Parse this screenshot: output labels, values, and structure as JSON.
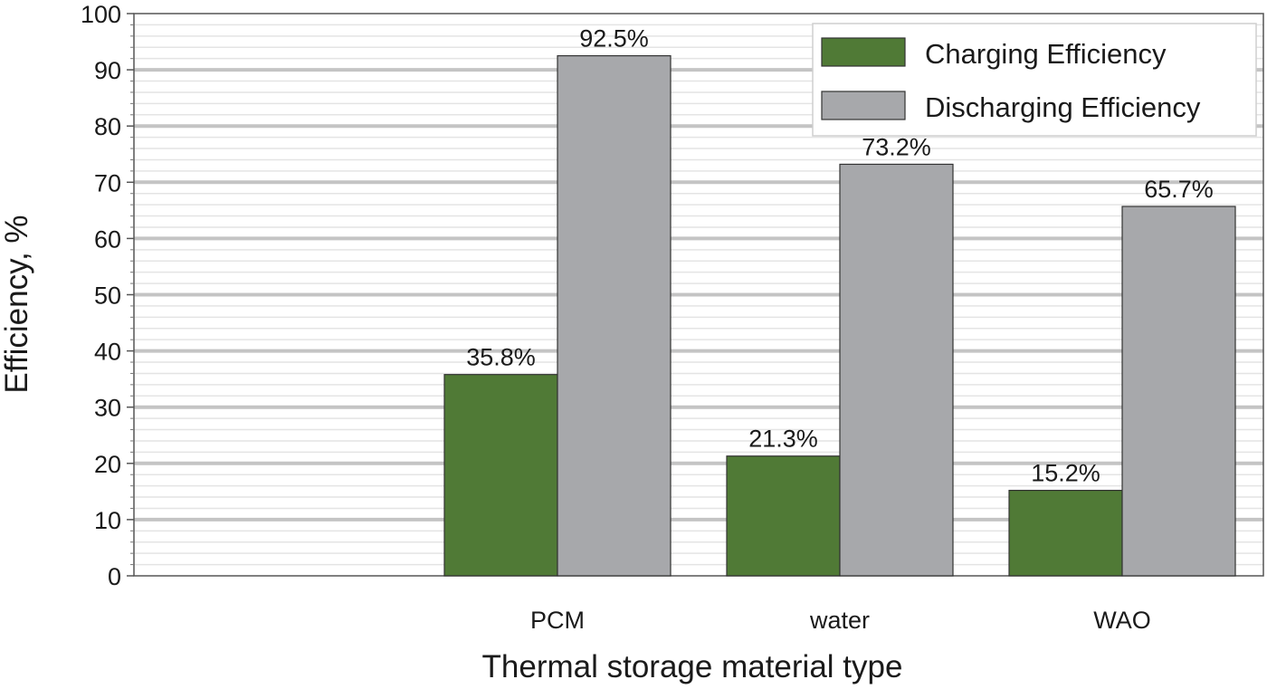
{
  "chart_data": {
    "type": "bar",
    "categories": [
      "PCM",
      "water",
      "WAO"
    ],
    "series": [
      {
        "name": "Charging Efficiency",
        "values": [
          35.8,
          21.3,
          15.2
        ],
        "labels": [
          "35.8%",
          "21.3%",
          "15.2%"
        ],
        "color": "#507a36"
      },
      {
        "name": "Discharging Efficiency",
        "values": [
          92.5,
          73.2,
          65.7
        ],
        "labels": [
          "92.5%",
          "73.2%",
          "65.7%"
        ],
        "color": "#a7a8ab"
      }
    ],
    "xlabel": "Thermal storage material type",
    "ylabel": "Efficiency, %",
    "ylim": [
      0,
      100
    ],
    "ytick_labels": [
      "0",
      "10",
      "20",
      "30",
      "40",
      "50",
      "60",
      "70",
      "80",
      "90",
      "100"
    ],
    "grid": true,
    "legend_position": "top-right"
  }
}
